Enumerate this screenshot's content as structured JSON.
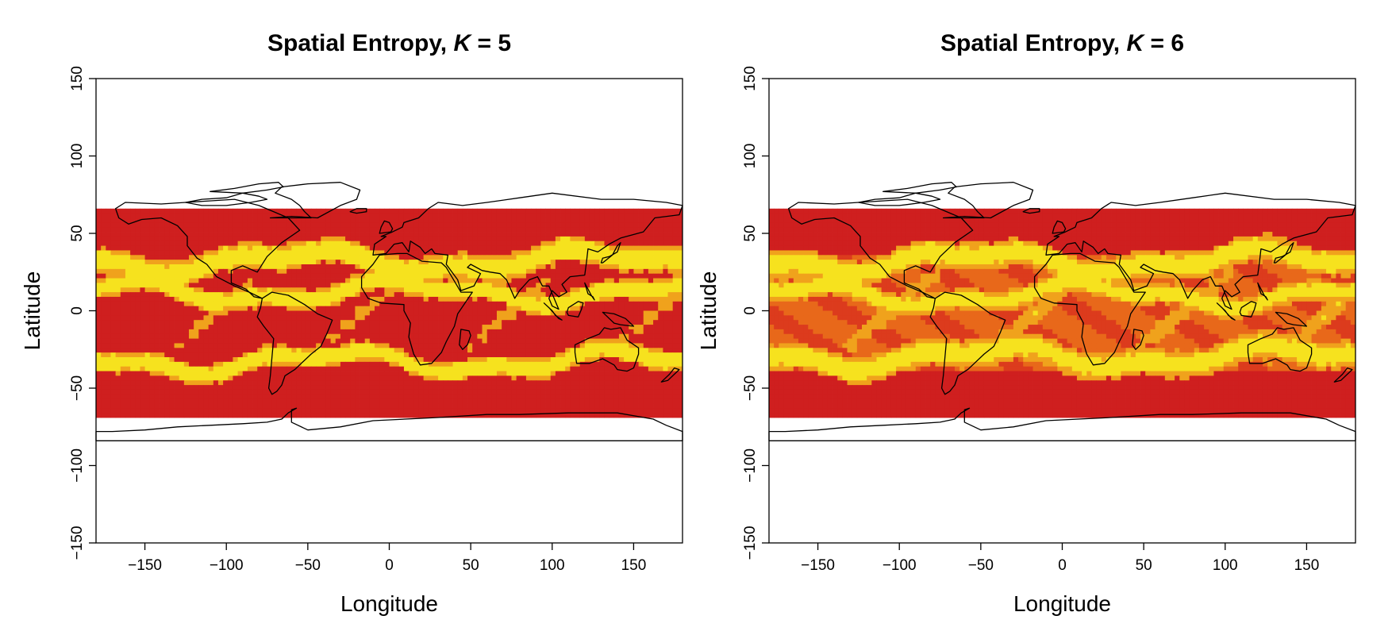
{
  "chart_data": [
    {
      "type": "heatmap",
      "title": "Spatial Entropy, K = 5",
      "title_prefix": "Spatial Entropy, ",
      "title_k": "K",
      "title_suffix": " = 5",
      "xlabel": "Longitude",
      "ylabel": "Latitude",
      "xlim": [
        -180,
        180
      ],
      "ylim": [
        -150,
        150
      ],
      "xticks": [
        -150,
        -100,
        -50,
        0,
        50,
        100,
        150
      ],
      "yticks": [
        -150,
        -100,
        -50,
        0,
        50,
        100,
        150
      ],
      "data_extent": {
        "lon": [
          -180,
          180
        ],
        "lat": [
          -66,
          66
        ]
      },
      "grid": false,
      "legend": "none",
      "colors": {
        "high": "#cf1f1f",
        "mid": "#e8681a",
        "low": "#f6e21e"
      },
      "low_entropy_bands": [
        {
          "lat": 32,
          "width": 9
        },
        {
          "lat": 12,
          "width": 7
        },
        {
          "lat": -33,
          "width": 7
        }
      ],
      "dominant_level": "high"
    },
    {
      "type": "heatmap",
      "title": "Spatial Entropy, K = 6",
      "title_prefix": "Spatial Entropy, ",
      "title_k": "K",
      "title_suffix": " = 6",
      "xlabel": "Longitude",
      "ylabel": "Latitude",
      "xlim": [
        -180,
        180
      ],
      "ylim": [
        -150,
        150
      ],
      "xticks": [
        -150,
        -100,
        -50,
        0,
        50,
        100,
        150
      ],
      "yticks": [
        -150,
        -100,
        -50,
        0,
        50,
        100,
        150
      ],
      "data_extent": {
        "lon": [
          -180,
          180
        ],
        "lat": [
          -66,
          66
        ]
      },
      "grid": false,
      "legend": "none",
      "colors": {
        "high": "#cf1f1f",
        "mid": "#e8681a",
        "low": "#f6e21e"
      },
      "low_entropy_bands": [
        {
          "lat": 32,
          "width": 8
        },
        {
          "lat": 10,
          "width": 6
        },
        {
          "lat": -30,
          "width": 8
        }
      ],
      "dominant_level": "mid"
    }
  ]
}
